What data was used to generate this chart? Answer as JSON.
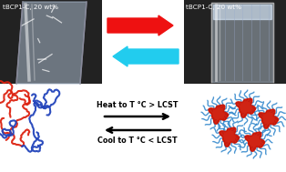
{
  "label_left": "tBCP1-C, 20 wt%",
  "label_right": "tBCP1-C, 20 wt%",
  "arrow_right_color": "#ee1111",
  "arrow_left_color": "#22ccee",
  "text_heat": "Heat to T °C > LCST",
  "text_cool": "Cool to T °C < LCST",
  "bg_color": "#ffffff",
  "photo_bg_left": "#222222",
  "photo_bg_right": "#222222",
  "chain_red_color": "#dd2211",
  "chain_blue_color": "#2244bb",
  "micelle_core_color": "#cc1100",
  "micelle_shell_color": "#3388cc",
  "fig_width": 3.14,
  "fig_height": 1.89,
  "dpi": 100
}
